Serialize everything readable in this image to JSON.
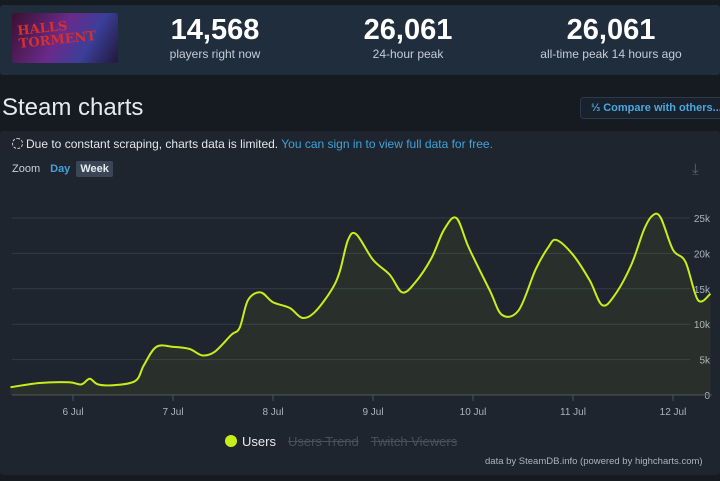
{
  "header": {
    "game_logo_text": "HALLS TORMENT",
    "stats": [
      {
        "value": "14,568",
        "label": "players right now"
      },
      {
        "value": "26,061",
        "label": "24-hour peak"
      },
      {
        "value": "26,061",
        "label": "all-time peak 14 hours ago"
      }
    ]
  },
  "section_title": "Steam charts",
  "compare_button": "⅓ Compare with others...",
  "notice": {
    "text": "Due to constant scraping, charts data is limited.",
    "link": "You can sign in to view full data for free."
  },
  "zoom": {
    "label": "Zoom",
    "options": [
      "Day",
      "Week"
    ],
    "selected": "Week"
  },
  "colors": {
    "users": "#c6ef19",
    "accent": "#3fa3dc"
  },
  "chart_data": {
    "type": "area",
    "ylim": [
      0,
      27000
    ],
    "yticks": [
      "0",
      "5k",
      "10k",
      "15k",
      "20k",
      "25k"
    ],
    "xticks": [
      "6 Jul",
      "7 Jul",
      "8 Jul",
      "9 Jul",
      "10 Jul",
      "11 Jul",
      "12 Jul"
    ],
    "grid": true,
    "legend_placement": "bottom",
    "legend": [
      {
        "name": "Users",
        "enabled": true
      },
      {
        "name": "Users Trend",
        "enabled": false
      },
      {
        "name": "Twitch Viewers",
        "enabled": false
      }
    ],
    "series": [
      {
        "name": "Users",
        "points": [
          [
            "Jul 5 09:00",
            1100
          ],
          [
            "Jul 5 16:00",
            1700
          ],
          [
            "Jul 5 23:00",
            1800
          ],
          [
            "Jul 6 02:00",
            1500
          ],
          [
            "Jul 6 04:00",
            2300
          ],
          [
            "Jul 6 06:00",
            1500
          ],
          [
            "Jul 6 10:00",
            1400
          ],
          [
            "Jul 6 15:00",
            2000
          ],
          [
            "Jul 6 17:00",
            4200
          ],
          [
            "Jul 6 20:00",
            6800
          ],
          [
            "Jul 7 00:00",
            6800
          ],
          [
            "Jul 7 04:00",
            6500
          ],
          [
            "Jul 7 07:00",
            5600
          ],
          [
            "Jul 7 10:00",
            6100
          ],
          [
            "Jul 7 14:00",
            8500
          ],
          [
            "Jul 7 16:00",
            9500
          ],
          [
            "Jul 7 18:00",
            13400
          ],
          [
            "Jul 7 21:00",
            14500
          ],
          [
            "Jul 8 00:00",
            13100
          ],
          [
            "Jul 8 04:00",
            12300
          ],
          [
            "Jul 8 07:00",
            10900
          ],
          [
            "Jul 8 10:00",
            11700
          ],
          [
            "Jul 8 14:00",
            14800
          ],
          [
            "Jul 8 16:00",
            17400
          ],
          [
            "Jul 8 18:00",
            21900
          ],
          [
            "Jul 8 20:00",
            22700
          ],
          [
            "Jul 9 00:00",
            19100
          ],
          [
            "Jul 9 04:00",
            17000
          ],
          [
            "Jul 9 07:00",
            14500
          ],
          [
            "Jul 9 10:00",
            15800
          ],
          [
            "Jul 9 14:00",
            19300
          ],
          [
            "Jul 9 17:00",
            23300
          ],
          [
            "Jul 9 20:00",
            25000
          ],
          [
            "Jul 9 23:00",
            20800
          ],
          [
            "Jul 10 04:00",
            14800
          ],
          [
            "Jul 10 07:00",
            11300
          ],
          [
            "Jul 10 11:00",
            12000
          ],
          [
            "Jul 10 15:00",
            17700
          ],
          [
            "Jul 10 18:00",
            20800
          ],
          [
            "Jul 10 20:00",
            21900
          ],
          [
            "Jul 11 00:00",
            19800
          ],
          [
            "Jul 11 04:00",
            16200
          ],
          [
            "Jul 11 07:00",
            12700
          ],
          [
            "Jul 11 10:00",
            14100
          ],
          [
            "Jul 11 14:00",
            18400
          ],
          [
            "Jul 11 17:00",
            23300
          ],
          [
            "Jul 11 19:00",
            25300
          ],
          [
            "Jul 11 21:00",
            25100
          ],
          [
            "Jul 12 00:00",
            20500
          ],
          [
            "Jul 12 03:00",
            18800
          ],
          [
            "Jul 12 06:00",
            13400
          ],
          [
            "Jul 12 09:00",
            14300
          ]
        ]
      }
    ]
  },
  "credit": "data by SteamDB.info (powered by highcharts.com)"
}
